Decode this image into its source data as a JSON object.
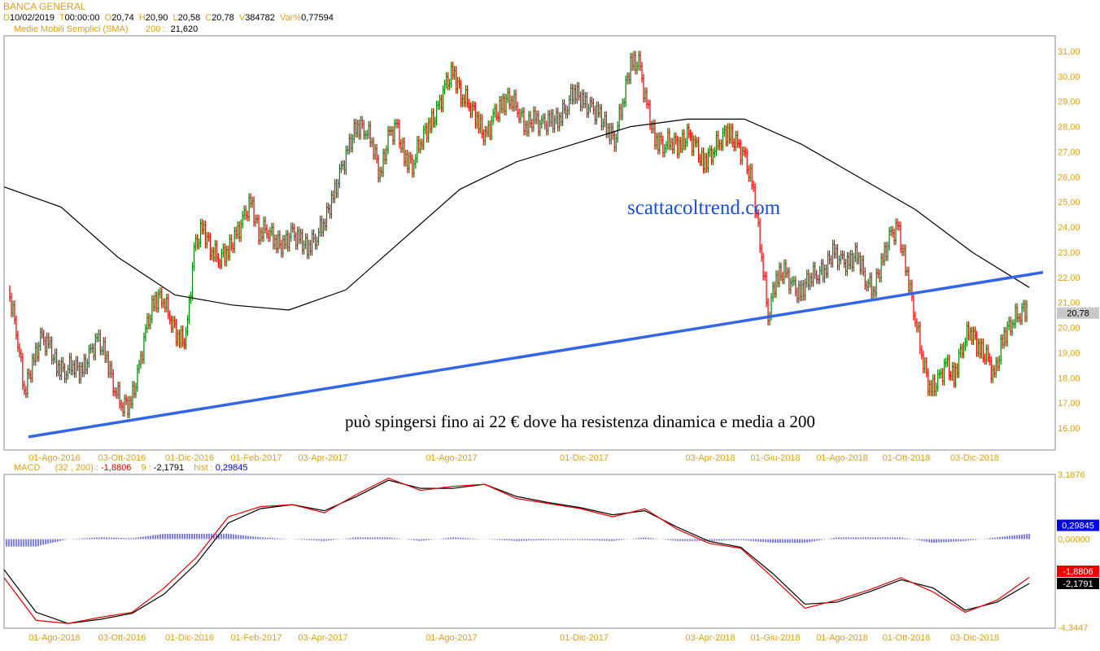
{
  "header": {
    "symbol": "BANCA GENERAL",
    "d_label": "D",
    "date": "10/02/2019",
    "t_label": "T",
    "time": "00:00:00",
    "o_label": "O",
    "open": "20,74",
    "h_label": "H",
    "high": "20,90",
    "l_label": "L",
    "low": "20,58",
    "c_label": "C",
    "close": "20,78",
    "v_label": "V",
    "volume": "384782",
    "var_label": "Var%",
    "var": "0,77594",
    "sma_label": "Medie Mobili Semplici (SMA)",
    "sma_period": "200 :",
    "sma_value": "21,620"
  },
  "macd_header": {
    "label": "MACD",
    "params": "(32 , 200) :",
    "macd_value": "-1,8806",
    "signal_label": "9 :",
    "signal_value": "-2,1791",
    "hist_label": "hist :",
    "hist_value": "0,29845"
  },
  "annotations": {
    "site": "scattacoltrend.com",
    "comment": "può spingersi fino ai 22 € dove ha resistenza dinamica e media a 200"
  },
  "colors": {
    "label_gold": "#d9a21b",
    "up_bar": "#008000",
    "down_bar": "#e00000",
    "sma": "#000000",
    "trendline": "#3366e6",
    "macd": "#e00000",
    "signal": "#000000",
    "histogram": "#0000c0",
    "annotation_site": "#1a4fd6"
  },
  "chart_data": [
    {
      "type": "bar",
      "subtype": "ohlc",
      "title": "BANCA GENERAL",
      "ylim": [
        15.4,
        31.6
      ],
      "y_ticks": [
        "31,00",
        "30,00",
        "29,00",
        "28,00",
        "27,00",
        "26,00",
        "25,00",
        "24,00",
        "23,00",
        "22,00",
        "21,00",
        "20,00",
        "19,00",
        "18,00",
        "17,00",
        "16,00"
      ],
      "y_tick_values": [
        31,
        30,
        29,
        28,
        27,
        26,
        25,
        24,
        23,
        22,
        21,
        20,
        19,
        18,
        17,
        16
      ],
      "x_ticks": [
        "01-Ago-2016",
        "03-Ott-2016",
        "01-Dic-2016",
        "01-Feb-2017",
        "03-Apr-2017",
        "01-Ago-2017",
        "01-Dic-2017",
        "03-Apr-2018",
        "01-Giu-2018",
        "01-Ago-2018",
        "01-Ott-2018",
        "03-Dic-2018"
      ],
      "last_price_label": "20,78",
      "last_price": 20.78,
      "close": [
        21.5,
        20,
        17.5,
        18.5,
        19.5,
        19.3,
        18.5,
        18.3,
        18.6,
        18.2,
        18.8,
        19.5,
        19,
        17.8,
        17,
        16.9,
        18,
        19.8,
        21,
        21.3,
        20.5,
        19.6,
        19.5,
        23,
        24,
        23.2,
        22.8,
        23,
        23.5,
        24.2,
        25,
        23.8,
        24,
        23.5,
        23.2,
        23.7,
        23.5,
        23.2,
        23.6,
        24.2,
        25,
        26,
        27,
        28,
        28,
        27.5,
        26,
        27.5,
        28,
        26.8,
        26.5,
        27.5,
        28,
        28.5,
        29.5,
        30.2,
        29.3,
        29,
        28.3,
        27.5,
        28.3,
        28.8,
        29.2,
        28.8,
        28,
        28.3,
        28,
        28.2,
        28.3,
        28.8,
        29.5,
        29,
        28.7,
        28.5,
        28,
        27.5,
        29,
        30.5,
        30.5,
        28.8,
        27.5,
        27.3,
        27.5,
        27.2,
        27.6,
        27.2,
        26.5,
        27,
        27.5,
        27.8,
        27.3,
        26.8,
        25.8,
        23.5,
        20.5,
        22,
        22.2,
        21.6,
        21.3,
        22,
        22.2,
        22.3,
        23,
        22.6,
        22.5,
        23,
        22,
        21.5,
        22.5,
        23.5,
        24,
        22.5,
        20.8,
        19,
        17.5,
        17.8,
        18.5,
        18,
        19.3,
        20,
        19.2,
        18.8,
        18,
        19.5,
        20.2,
        20.6,
        20.78
      ],
      "sma200": [
        25.6,
        24.8,
        22.8,
        21.3,
        20.9,
        20.7,
        21.5,
        23.5,
        25.5,
        26.6,
        27.3,
        28,
        28.3,
        28.3,
        27.3,
        26,
        24.7,
        23,
        21.6
      ],
      "sma_label": "200",
      "trendline": [
        15.65,
        22.2
      ]
    },
    {
      "type": "line",
      "title": "MACD",
      "ylim": [
        -4.3447,
        3.1876
      ],
      "y_ticks": [
        "3,1876",
        "0,00000",
        "-4,3447"
      ],
      "y_tick_values": [
        3.1876,
        0,
        -4.3447
      ],
      "x_ticks": [
        "01-Ago-2016",
        "03-Ott-2016",
        "01-Dic-2016",
        "01-Feb-2017",
        "03-Apr-2017",
        "01-Ago-2017",
        "01-Dic-2017",
        "03-Apr-2018",
        "01-Giu-2018",
        "01-Ago-2018",
        "01-Ott-2018",
        "03-Dic-2018"
      ],
      "series": [
        {
          "name": "MACD",
          "values": [
            -1.9,
            -4.0,
            -4.15,
            -3.85,
            -3.6,
            -2.4,
            -0.9,
            1.1,
            1.6,
            1.7,
            1.3,
            2.2,
            3.0,
            2.4,
            2.6,
            2.7,
            2.0,
            1.75,
            1.5,
            1.1,
            1.5,
            0.5,
            -0.2,
            -0.45,
            -1.9,
            -3.4,
            -3.0,
            -2.5,
            -1.9,
            -2.6,
            -3.6,
            -3.0,
            -1.88
          ]
        },
        {
          "name": "9",
          "values": [
            -1.5,
            -3.6,
            -4.15,
            -3.95,
            -3.65,
            -2.7,
            -1.2,
            0.8,
            1.5,
            1.7,
            1.4,
            2.1,
            2.9,
            2.5,
            2.5,
            2.7,
            2.1,
            1.8,
            1.55,
            1.2,
            1.4,
            0.6,
            -0.1,
            -0.4,
            -1.7,
            -3.2,
            -3.1,
            -2.6,
            -2.0,
            -2.4,
            -3.5,
            -3.1,
            -2.18
          ]
        }
      ],
      "value_boxes": {
        "hist": "0,29845",
        "macd": "-1,8806",
        "signal": "-2,1791"
      }
    }
  ]
}
